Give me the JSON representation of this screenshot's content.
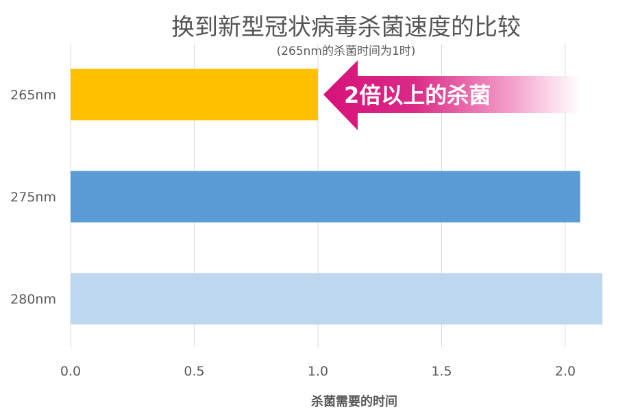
{
  "chart_data": {
    "type": "bar",
    "orientation": "horizontal",
    "title": "换到新型冠状病毒杀菌速度的比较",
    "subtitle": "(265nm的杀菌时间为1时)",
    "xlabel": "杀菌需要的时间",
    "ylabel": "",
    "categories": [
      "265nm",
      "275nm",
      "280nm"
    ],
    "values": [
      1.0,
      2.06,
      2.15
    ],
    "bar_colors": [
      "#FFC000",
      "#5B9BD5",
      "#BDD7EE"
    ],
    "xlim": [
      0,
      2.15
    ],
    "xticks": [
      "0.0",
      "0.5",
      "1.0",
      "1.5",
      "2.0"
    ],
    "grid": true,
    "legend": "none",
    "annotation": {
      "text": "2倍以上的杀菌",
      "color": "#D6127A"
    }
  }
}
